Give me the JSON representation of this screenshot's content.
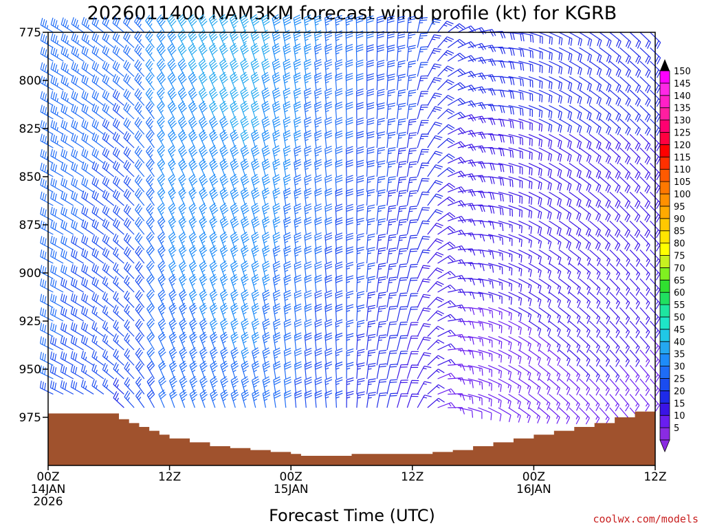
{
  "chart_data": {
    "type": "wind_barbs",
    "title": "2026011400 NAM3KM forecast wind profile (kt) for KGRB",
    "xlabel": "Forecast Time (UTC)",
    "ylabel": "",
    "credit": "coolwx.com/models",
    "units": "kt",
    "x_range_hours": [
      0,
      60
    ],
    "y_range_mb": [
      775,
      1000
    ],
    "y_ticks": [
      {
        "value": 775,
        "label": "775"
      },
      {
        "value": 800,
        "label": "800"
      },
      {
        "value": 825,
        "label": "825"
      },
      {
        "value": 850,
        "label": "850"
      },
      {
        "value": 875,
        "label": "875"
      },
      {
        "value": 900,
        "label": "900"
      },
      {
        "value": 925,
        "label": "925"
      },
      {
        "value": 950,
        "label": "950"
      },
      {
        "value": 975,
        "label": "975"
      }
    ],
    "x_ticks": [
      {
        "hour": 0,
        "lines": [
          "00Z",
          "14JAN",
          "2026"
        ]
      },
      {
        "hour": 12,
        "lines": [
          "12Z"
        ]
      },
      {
        "hour": 24,
        "lines": [
          "00Z",
          "15JAN"
        ]
      },
      {
        "hour": 36,
        "lines": [
          "12Z"
        ]
      },
      {
        "hour": 48,
        "lines": [
          "00Z",
          "16JAN"
        ]
      },
      {
        "hour": 60,
        "lines": [
          "12Z"
        ]
      }
    ],
    "colorbar": {
      "levels": [
        5,
        10,
        15,
        20,
        25,
        30,
        35,
        40,
        45,
        50,
        55,
        60,
        65,
        70,
        75,
        80,
        85,
        90,
        95,
        100,
        105,
        110,
        115,
        120,
        125,
        130,
        135,
        140,
        145,
        150
      ],
      "colors": [
        "#8a2be2",
        "#6a1ef0",
        "#3a14e6",
        "#1e2ae8",
        "#1a4cf0",
        "#1e6cf6",
        "#1e8cf8",
        "#24a8f0",
        "#20c8e6",
        "#1ee6c8",
        "#1ee6a0",
        "#20e060",
        "#30e030",
        "#80f020",
        "#c8f020",
        "#ffff00",
        "#ffe400",
        "#ffc800",
        "#ffaa00",
        "#ff9000",
        "#ff7800",
        "#ff5a00",
        "#ff3000",
        "#ff0000",
        "#ff0040",
        "#ff0070",
        "#ff1ea0",
        "#ff20c8",
        "#ff28e6",
        "#ff00ff"
      ]
    },
    "ground_surface_mb": [
      {
        "hour": 0,
        "mb": 973
      },
      {
        "hour": 6,
        "mb": 973
      },
      {
        "hour": 7,
        "mb": 976
      },
      {
        "hour": 8,
        "mb": 978
      },
      {
        "hour": 9,
        "mb": 980
      },
      {
        "hour": 10,
        "mb": 982
      },
      {
        "hour": 11,
        "mb": 984
      },
      {
        "hour": 12,
        "mb": 986
      },
      {
        "hour": 14,
        "mb": 988
      },
      {
        "hour": 16,
        "mb": 990
      },
      {
        "hour": 18,
        "mb": 991
      },
      {
        "hour": 20,
        "mb": 992
      },
      {
        "hour": 22,
        "mb": 993
      },
      {
        "hour": 24,
        "mb": 994
      },
      {
        "hour": 25,
        "mb": 995
      },
      {
        "hour": 28,
        "mb": 995
      },
      {
        "hour": 30,
        "mb": 994
      },
      {
        "hour": 34,
        "mb": 994
      },
      {
        "hour": 36,
        "mb": 994
      },
      {
        "hour": 38,
        "mb": 993
      },
      {
        "hour": 40,
        "mb": 992
      },
      {
        "hour": 42,
        "mb": 990
      },
      {
        "hour": 44,
        "mb": 988
      },
      {
        "hour": 46,
        "mb": 986
      },
      {
        "hour": 48,
        "mb": 984
      },
      {
        "hour": 50,
        "mb": 982
      },
      {
        "hour": 52,
        "mb": 980
      },
      {
        "hour": 54,
        "mb": 978
      },
      {
        "hour": 56,
        "mb": 975
      },
      {
        "hour": 58,
        "mb": 972
      },
      {
        "hour": 60,
        "mb": 970
      }
    ],
    "wind_profile_by_hour": [
      {
        "hour": 0,
        "dir_top": 300,
        "spd_top": 35,
        "dir_bot": 295,
        "spd_bot": 30
      },
      {
        "hour": 4,
        "dir_top": 305,
        "spd_top": 33,
        "dir_bot": 300,
        "spd_bot": 27
      },
      {
        "hour": 8,
        "dir_top": 310,
        "spd_top": 31,
        "dir_bot": 315,
        "spd_bot": 24
      },
      {
        "hour": 12,
        "dir_top": 330,
        "spd_top": 40,
        "dir_bot": 340,
        "spd_bot": 32
      },
      {
        "hour": 16,
        "dir_top": 335,
        "spd_top": 42,
        "dir_bot": 340,
        "spd_bot": 33
      },
      {
        "hour": 20,
        "dir_top": 340,
        "spd_top": 43,
        "dir_bot": 345,
        "spd_bot": 34
      },
      {
        "hour": 24,
        "dir_top": 350,
        "spd_top": 38,
        "dir_bot": 355,
        "spd_bot": 30
      },
      {
        "hour": 28,
        "dir_top": 355,
        "spd_top": 34,
        "dir_bot": 355,
        "spd_bot": 26
      },
      {
        "hour": 32,
        "dir_top": 0,
        "spd_top": 30,
        "dir_bot": 10,
        "spd_bot": 22
      },
      {
        "hour": 36,
        "dir_top": 5,
        "spd_top": 27,
        "dir_bot": 20,
        "spd_bot": 17
      },
      {
        "hour": 40,
        "dir_top": 60,
        "spd_top": 22,
        "dir_bot": 100,
        "spd_bot": 12
      },
      {
        "hour": 44,
        "dir_top": 90,
        "spd_top": 22,
        "dir_bot": 120,
        "spd_bot": 12
      },
      {
        "hour": 48,
        "dir_top": 110,
        "spd_top": 22,
        "dir_bot": 130,
        "spd_bot": 13
      },
      {
        "hour": 52,
        "dir_top": 120,
        "spd_top": 22,
        "dir_bot": 135,
        "spd_bot": 14
      },
      {
        "hour": 56,
        "dir_top": 130,
        "spd_top": 22,
        "dir_bot": 140,
        "spd_bot": 14
      },
      {
        "hour": 60,
        "dir_top": 135,
        "spd_top": 22,
        "dir_bot": 140,
        "spd_bot": 13
      }
    ],
    "barb_time_step_hours": 1,
    "barb_levels_mb": [
      775,
      783,
      790,
      798,
      805,
      813,
      820,
      828,
      835,
      843,
      850,
      858,
      865,
      873,
      880,
      888,
      895,
      903,
      910,
      918,
      925,
      933,
      940,
      948,
      955,
      963,
      970
    ]
  }
}
